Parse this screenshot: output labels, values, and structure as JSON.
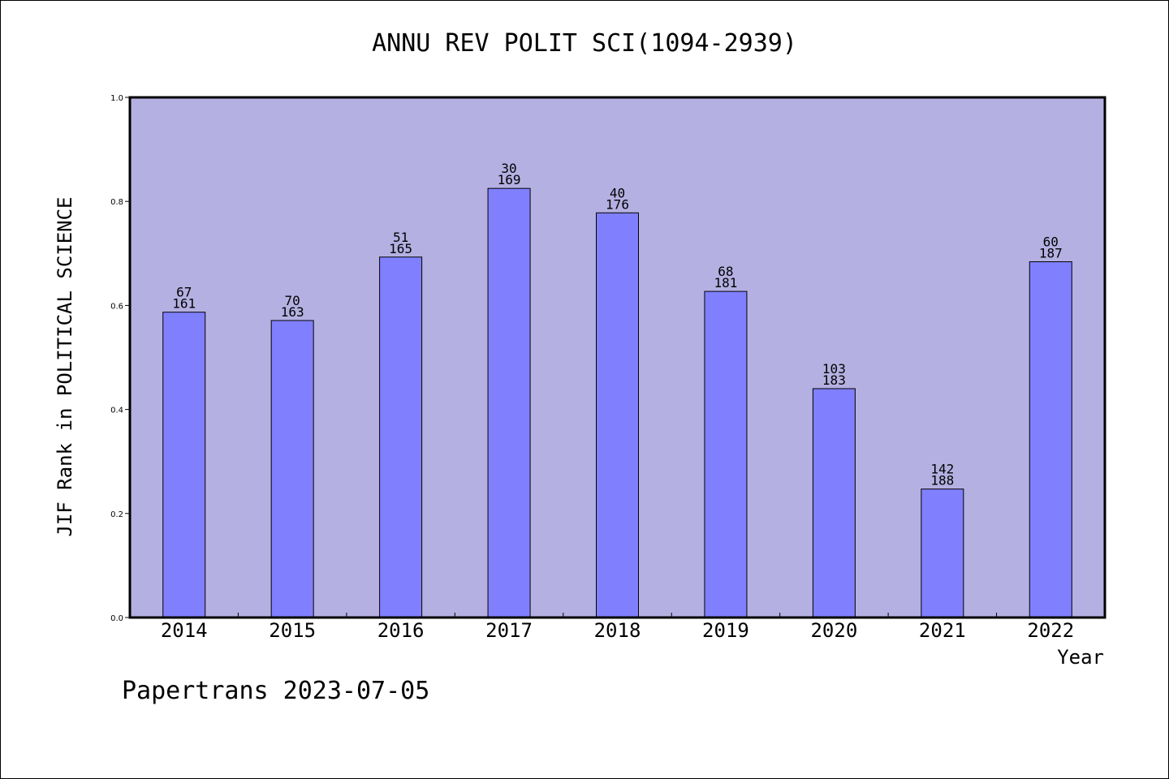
{
  "chart_data": {
    "type": "bar",
    "title": "ANNU REV POLIT SCI(1094-2939)",
    "xlabel": "Year",
    "ylabel": "JIF Rank in POLITICAL SCIENCE",
    "ylim": [
      0,
      1.0
    ],
    "yticks": [
      "0.0",
      "0.2",
      "0.4",
      "0.6",
      "0.8",
      "1.0"
    ],
    "categories": [
      "2014",
      "2015",
      "2016",
      "2017",
      "2018",
      "2019",
      "2020",
      "2021",
      "2022"
    ],
    "values": [
      0.587,
      0.571,
      0.693,
      0.825,
      0.778,
      0.627,
      0.44,
      0.247,
      0.684
    ],
    "rank": [
      "67",
      "70",
      "51",
      "30",
      "40",
      "68",
      "103",
      "142",
      "60"
    ],
    "total": [
      "161",
      "163",
      "165",
      "169",
      "176",
      "181",
      "183",
      "188",
      "187"
    ],
    "grid": false,
    "colors": {
      "plot_background": "#b5b0e2",
      "bar": "#8080ff"
    }
  },
  "footer": "Papertrans 2023-07-05"
}
